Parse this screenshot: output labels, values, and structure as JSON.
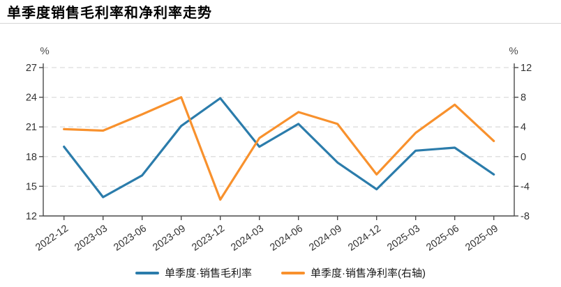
{
  "header": {
    "title": "单季度销售毛利率和净利率走势"
  },
  "chart_data": {
    "type": "line",
    "title": "单季度销售毛利率和净利率走势",
    "categories": [
      "2022-12",
      "2023-03",
      "2023-06",
      "2023-09",
      "2023-12",
      "2024-03",
      "2024-06",
      "2024-09",
      "2024-12",
      "2025-03",
      "2025-06",
      "2025-09"
    ],
    "series": [
      {
        "name": "单季度·销售毛利率",
        "axis": "left",
        "color": "#2b7cab",
        "values": [
          19.0,
          13.9,
          16.1,
          21.1,
          23.9,
          19.0,
          21.3,
          17.4,
          14.7,
          18.6,
          18.9,
          16.2
        ]
      },
      {
        "name": "单季度·销售净利率(右轴)",
        "axis": "right",
        "color": "#f8912d",
        "values": [
          3.7,
          3.5,
          5.7,
          8.0,
          -5.8,
          2.5,
          6.0,
          4.4,
          -2.4,
          3.2,
          7.0,
          2.1
        ]
      }
    ],
    "left_axis": {
      "unit_label": "%",
      "min": 12,
      "max": 27,
      "ticks": [
        12,
        15,
        18,
        21,
        24,
        27
      ]
    },
    "right_axis": {
      "unit_label": "%",
      "min": -8,
      "max": 12,
      "ticks": [
        -8,
        -4,
        0,
        4,
        8,
        12
      ]
    },
    "grid": {
      "horizontal": true,
      "style": "dashed",
      "color": "#dcdcdc"
    },
    "legend_position": "bottom",
    "x_label_rotation_deg": -35
  },
  "style": {
    "axis_line_color": "#4a4a4a",
    "tick_label_color": "#333333",
    "unit_label_color": "#4d4d4d",
    "background": "#ffffff"
  }
}
